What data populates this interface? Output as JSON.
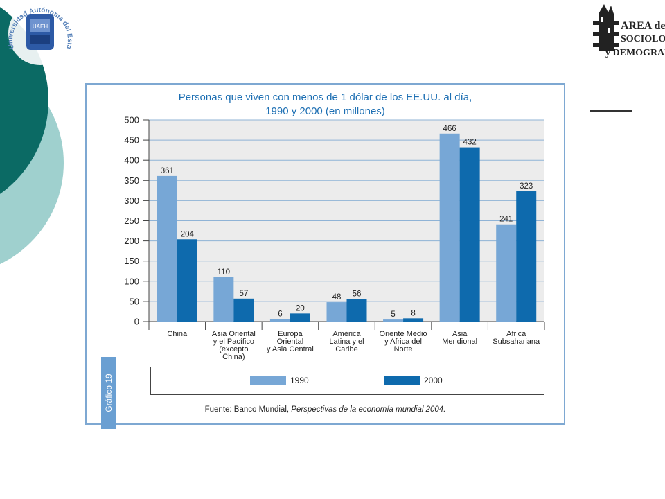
{
  "header": {
    "logo_left_text": "Universidad Autónoma del Estado de Hidalgo",
    "logo_left_emblem": "UAEH",
    "logo_right_line1": "AREA de",
    "logo_right_line2": "SOCIOLOGÍA",
    "logo_right_line3": "y DEMOGRAFÍA"
  },
  "colors": {
    "series_1990": "#77a7d6",
    "series_2000": "#0e6aad",
    "title": "#1d6fb3",
    "plot_bg": "#ececec",
    "frame": "#7ea8d2",
    "deco_dark": "#0b6a64",
    "deco_light": "#9fd0ce"
  },
  "chart_data": {
    "type": "bar",
    "title_line1": "Personas que viven con menos de 1 dólar de los EE.UU. al día,",
    "title_line2": "1990 y 2000 (en millones)",
    "categories": [
      [
        "China"
      ],
      [
        "Asia Oriental",
        "y el Pacífico",
        "(excepto",
        "China)"
      ],
      [
        "Europa",
        "Oriental",
        "y Asia Central"
      ],
      [
        "América",
        "Latina y el",
        "Caribe"
      ],
      [
        "Oriente Medio",
        "y Africa del",
        "Norte"
      ],
      [
        "Asia",
        "Meridional"
      ],
      [
        "Africa",
        "Subsahariana"
      ]
    ],
    "series": [
      {
        "name": "1990",
        "values": [
          361,
          110,
          6,
          48,
          5,
          466,
          241
        ]
      },
      {
        "name": "2000",
        "values": [
          204,
          57,
          20,
          56,
          8,
          432,
          323
        ]
      }
    ],
    "ylim": [
      0,
      500
    ],
    "yticks": [
      0,
      50,
      100,
      150,
      200,
      250,
      300,
      350,
      400,
      450,
      500
    ],
    "grid": true,
    "legend": "bottom"
  },
  "side_tab": "Gráfico 19",
  "source": {
    "prefix": "Fuente: Banco Mundial, ",
    "title": "Perspectivas de la economía mundial 2004."
  }
}
